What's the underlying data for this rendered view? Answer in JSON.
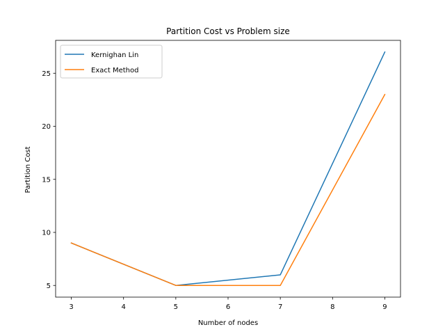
{
  "chart_data": {
    "type": "line",
    "title": "Partition Cost vs Problem size",
    "xlabel": "Number of nodes",
    "ylabel": "Partition Cost",
    "x": [
      3,
      5,
      7,
      9
    ],
    "series": [
      {
        "name": "Kernighan Lin",
        "values": [
          9,
          5,
          6,
          27
        ],
        "color": "#1f77b4"
      },
      {
        "name": "Exact Method",
        "values": [
          9,
          5,
          5,
          23
        ],
        "color": "#ff7f0e"
      }
    ],
    "xlim": [
      2.7,
      9.3
    ],
    "ylim": [
      3.9,
      28.1
    ],
    "xticks": [
      3,
      4,
      5,
      6,
      7,
      8,
      9
    ],
    "yticks": [
      5,
      10,
      15,
      20,
      25
    ],
    "grid": false,
    "legend_position": "upper-left"
  }
}
